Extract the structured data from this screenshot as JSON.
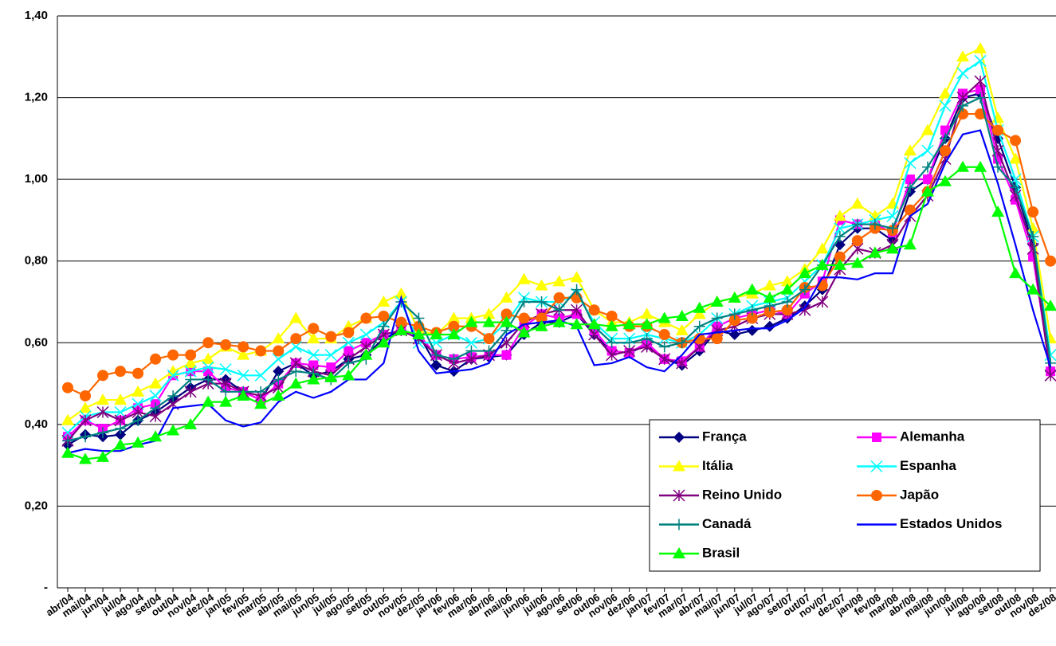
{
  "chart_data": {
    "type": "line",
    "categories": [
      "abr/04",
      "mai/04",
      "jun/04",
      "jul/04",
      "ago/04",
      "set/04",
      "out/04",
      "nov/04",
      "dez/04",
      "jan/05",
      "fev/05",
      "mar/05",
      "abr/05",
      "mai/05",
      "jun/05",
      "jul/05",
      "ago/05",
      "set/05",
      "out/05",
      "nov/05",
      "dez/05",
      "jan/06",
      "fev/06",
      "mar/06",
      "abr/06",
      "mai/06",
      "jun/06",
      "jul/06",
      "ago/06",
      "set/06",
      "out/06",
      "nov/06",
      "dez/06",
      "jan/07",
      "fev/07",
      "mar/07",
      "abr/07",
      "mai/07",
      "jun/07",
      "jul/07",
      "ago/07",
      "set/07",
      "out/07",
      "nov/07",
      "dez/07",
      "jan/08",
      "fev/08",
      "mar/08",
      "abr/08",
      "mai/08",
      "jun/08",
      "jul/08",
      "ago/08",
      "set/08",
      "out/08",
      "nov/08",
      "dez/08"
    ],
    "ylim": [
      0,
      1.4
    ],
    "yticks": [
      {
        "value": 0,
        "label": "-"
      },
      {
        "value": 0.2,
        "label": "0,20"
      },
      {
        "value": 0.4,
        "label": "0,40"
      },
      {
        "value": 0.6,
        "label": "0,60"
      },
      {
        "value": 0.8,
        "label": "0,80"
      },
      {
        "value": 1.0,
        "label": "1,00"
      },
      {
        "value": 1.2,
        "label": "1,20"
      },
      {
        "value": 1.4,
        "label": "1,40"
      }
    ],
    "grid": true,
    "legend": "lower right",
    "series": [
      {
        "name": "França",
        "color": "#000080",
        "marker": "diamond",
        "values": [
          0.35,
          0.375,
          0.37,
          0.375,
          0.41,
          0.43,
          0.46,
          0.49,
          0.51,
          0.51,
          0.48,
          0.46,
          0.53,
          0.55,
          0.52,
          0.53,
          0.56,
          0.57,
          0.61,
          0.63,
          0.62,
          0.545,
          0.53,
          0.56,
          0.565,
          0.57,
          0.62,
          0.65,
          0.65,
          0.67,
          0.62,
          0.58,
          0.575,
          0.595,
          0.56,
          0.545,
          0.58,
          0.63,
          0.62,
          0.63,
          0.64,
          0.66,
          0.69,
          0.73,
          0.84,
          0.88,
          0.88,
          0.85,
          0.97,
          1.0,
          1.1,
          1.2,
          1.21,
          1.1,
          0.98,
          0.84,
          0.53
        ]
      },
      {
        "name": "Alemanha",
        "color": "#ff00ff",
        "marker": "square",
        "values": [
          0.37,
          0.41,
          0.39,
          0.41,
          0.44,
          0.45,
          0.52,
          0.53,
          0.53,
          0.49,
          0.48,
          0.46,
          0.5,
          0.55,
          0.545,
          0.54,
          0.58,
          0.6,
          0.62,
          0.63,
          0.62,
          0.57,
          0.56,
          0.565,
          0.57,
          0.57,
          0.64,
          0.67,
          0.66,
          0.67,
          0.63,
          0.58,
          0.575,
          0.6,
          0.56,
          0.555,
          0.59,
          0.64,
          0.66,
          0.67,
          0.68,
          0.67,
          0.72,
          0.75,
          0.9,
          0.89,
          0.89,
          0.87,
          1.0,
          1.0,
          1.12,
          1.21,
          1.22,
          1.05,
          0.95,
          0.81,
          0.53
        ]
      },
      {
        "name": "Itália",
        "color": "#ffff00",
        "marker": "triangle",
        "values": [
          0.41,
          0.44,
          0.46,
          0.46,
          0.48,
          0.5,
          0.53,
          0.55,
          0.56,
          0.59,
          0.57,
          0.58,
          0.61,
          0.66,
          0.61,
          0.61,
          0.64,
          0.66,
          0.7,
          0.72,
          0.63,
          0.62,
          0.66,
          0.66,
          0.67,
          0.71,
          0.755,
          0.74,
          0.75,
          0.76,
          0.68,
          0.65,
          0.65,
          0.67,
          0.65,
          0.63,
          0.67,
          0.7,
          0.71,
          0.72,
          0.74,
          0.75,
          0.78,
          0.83,
          0.91,
          0.94,
          0.91,
          0.94,
          1.07,
          1.12,
          1.21,
          1.3,
          1.32,
          1.15,
          1.05,
          0.88,
          0.61
        ]
      },
      {
        "name": "Espanha",
        "color": "#00ffff",
        "marker": "x",
        "values": [
          0.38,
          0.42,
          0.43,
          0.43,
          0.45,
          0.47,
          0.52,
          0.53,
          0.54,
          0.535,
          0.52,
          0.52,
          0.56,
          0.59,
          0.57,
          0.57,
          0.6,
          0.62,
          0.65,
          0.7,
          0.6,
          0.6,
          0.62,
          0.6,
          0.61,
          0.65,
          0.71,
          0.7,
          0.7,
          0.72,
          0.65,
          0.61,
          0.61,
          0.62,
          0.61,
          0.6,
          0.62,
          0.66,
          0.67,
          0.69,
          0.7,
          0.71,
          0.75,
          0.79,
          0.88,
          0.89,
          0.9,
          0.91,
          1.04,
          1.07,
          1.18,
          1.26,
          1.29,
          1.12,
          1.0,
          0.86,
          0.57
        ]
      },
      {
        "name": "Reino Unido",
        "color": "#800080",
        "marker": "star",
        "values": [
          0.36,
          0.41,
          0.43,
          0.41,
          0.43,
          0.42,
          0.45,
          0.48,
          0.5,
          0.5,
          0.48,
          0.47,
          0.49,
          0.55,
          0.53,
          0.52,
          0.56,
          0.59,
          0.62,
          0.63,
          0.61,
          0.57,
          0.55,
          0.56,
          0.57,
          0.6,
          0.65,
          0.67,
          0.68,
          0.68,
          0.62,
          0.57,
          0.58,
          0.59,
          0.56,
          0.55,
          0.59,
          0.63,
          0.64,
          0.66,
          0.67,
          0.67,
          0.68,
          0.7,
          0.78,
          0.83,
          0.82,
          0.84,
          0.91,
          0.96,
          1.05,
          1.2,
          1.24,
          1.07,
          0.96,
          0.83,
          0.52
        ]
      },
      {
        "name": "Japão",
        "color": "#ff6600",
        "marker": "circle",
        "values": [
          0.49,
          0.47,
          0.52,
          0.53,
          0.525,
          0.56,
          0.57,
          0.57,
          0.6,
          0.595,
          0.59,
          0.58,
          0.58,
          0.61,
          0.635,
          0.615,
          0.625,
          0.66,
          0.665,
          0.65,
          0.64,
          0.625,
          0.64,
          0.64,
          0.61,
          0.67,
          0.66,
          0.66,
          0.71,
          0.71,
          0.68,
          0.665,
          0.64,
          0.64,
          0.62,
          0.6,
          0.61,
          0.61,
          0.655,
          0.66,
          0.675,
          0.68,
          0.735,
          0.74,
          0.81,
          0.85,
          0.88,
          0.875,
          0.925,
          0.97,
          1.07,
          1.16,
          1.16,
          1.12,
          1.095,
          0.92,
          0.8
        ]
      },
      {
        "name": "Canadá",
        "color": "#008080",
        "marker": "plus",
        "values": [
          0.36,
          0.37,
          0.38,
          0.39,
          0.41,
          0.44,
          0.47,
          0.51,
          0.51,
          0.48,
          0.48,
          0.48,
          0.51,
          0.53,
          0.525,
          0.51,
          0.55,
          0.56,
          0.64,
          0.7,
          0.66,
          0.57,
          0.56,
          0.58,
          0.58,
          0.63,
          0.7,
          0.7,
          0.68,
          0.73,
          0.64,
          0.6,
          0.6,
          0.61,
          0.59,
          0.6,
          0.64,
          0.66,
          0.67,
          0.68,
          0.69,
          0.7,
          0.73,
          0.79,
          0.86,
          0.89,
          0.89,
          0.88,
          0.98,
          1.03,
          1.1,
          1.18,
          1.2,
          1.03,
          0.98,
          0.86,
          0.55
        ]
      },
      {
        "name": "Estados Unidos",
        "color": "#0000ff",
        "marker": "none",
        "values": [
          0.33,
          0.34,
          0.335,
          0.335,
          0.35,
          0.36,
          0.44,
          0.445,
          0.45,
          0.41,
          0.395,
          0.405,
          0.455,
          0.48,
          0.465,
          0.48,
          0.51,
          0.51,
          0.55,
          0.71,
          0.58,
          0.525,
          0.53,
          0.535,
          0.55,
          0.62,
          0.645,
          0.65,
          0.655,
          0.64,
          0.545,
          0.55,
          0.565,
          0.54,
          0.53,
          0.57,
          0.62,
          0.625,
          0.63,
          0.635,
          0.635,
          0.655,
          0.685,
          0.76,
          0.76,
          0.755,
          0.77,
          0.77,
          0.91,
          0.94,
          1.04,
          1.11,
          1.12,
          0.99,
          0.84,
          0.68,
          0.54
        ]
      },
      {
        "name": "Brasil",
        "color": "#00ff00",
        "marker": "triangle",
        "values": [
          0.33,
          0.315,
          0.32,
          0.35,
          0.355,
          0.37,
          0.385,
          0.4,
          0.455,
          0.455,
          0.47,
          0.45,
          0.47,
          0.5,
          0.51,
          0.515,
          0.52,
          0.57,
          0.6,
          0.63,
          0.62,
          0.62,
          0.62,
          0.65,
          0.65,
          0.65,
          0.625,
          0.64,
          0.65,
          0.645,
          0.645,
          0.64,
          0.645,
          0.645,
          0.66,
          0.665,
          0.685,
          0.7,
          0.71,
          0.73,
          0.71,
          0.73,
          0.77,
          0.79,
          0.79,
          0.795,
          0.82,
          0.83,
          0.84,
          0.97,
          0.995,
          1.03,
          1.03,
          0.92,
          0.77,
          0.73,
          0.69
        ]
      }
    ]
  }
}
